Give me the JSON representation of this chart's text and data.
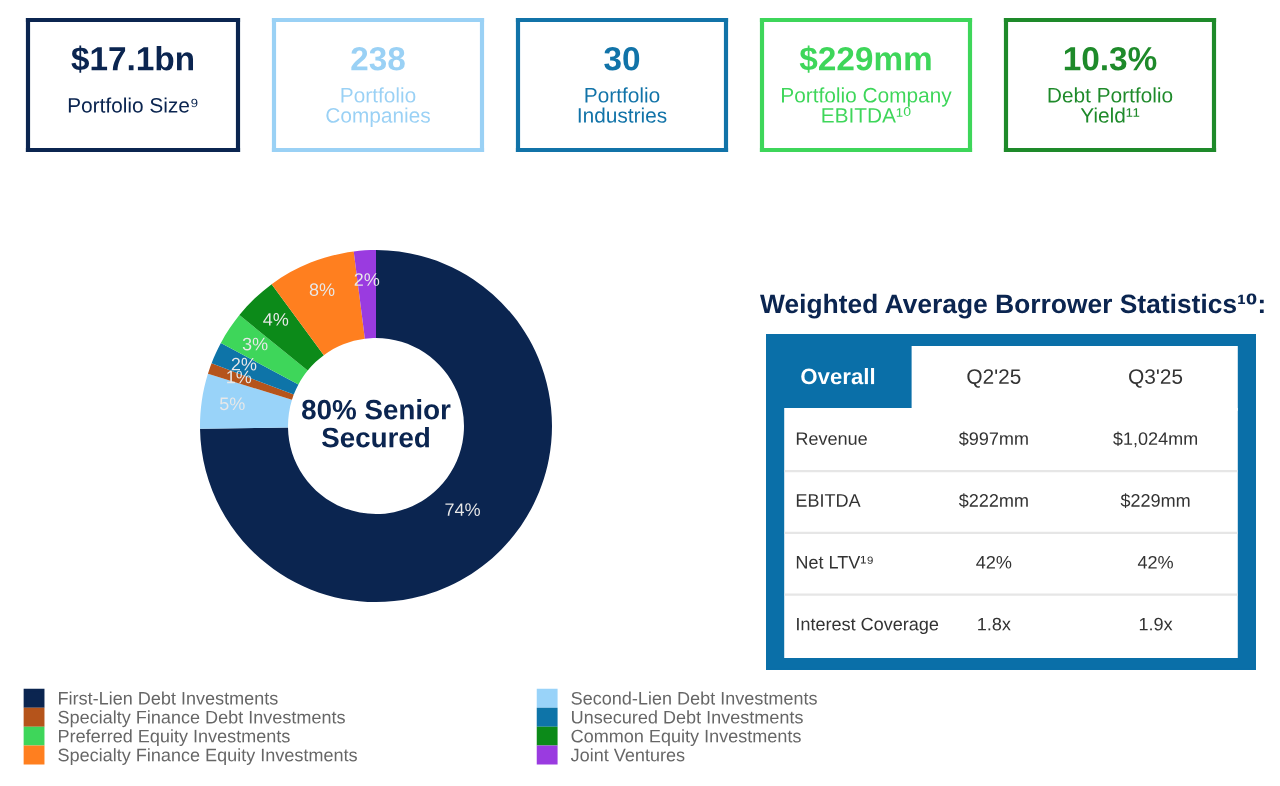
{
  "chart_data": [
    {
      "type": "other",
      "title": "$17.1bn",
      "subtitle": "Portfolio Size⁹",
      "color": "#0b2550"
    },
    {
      "type": "other",
      "title": "238",
      "subtitle": "Portfolio\nCompanies",
      "color": "#9ad1f5"
    },
    {
      "type": "other",
      "title": "30",
      "subtitle": "Portfolio\nIndustries",
      "color": "#1173a8"
    },
    {
      "type": "other",
      "title": "$229mm",
      "subtitle": "Portfolio Company\nEBITDA¹⁰",
      "color": "#3ed65a"
    },
    {
      "type": "other",
      "title": "10.3%",
      "subtitle": "Debt Portfolio\nYield¹¹",
      "color": "#1e8a2a"
    },
    {
      "type": "donut",
      "title": "80% Senior\nSecured",
      "categories": [
        "First-Lien Debt Investments",
        "Second-Lien Debt Investments",
        "Specialty Finance Debt Investments",
        "Unsecured Debt Investments",
        "Preferred Equity Investments",
        "Common Equity Investments",
        "Specialty Finance Equity Investments",
        "Joint Ventures"
      ],
      "values": [
        74,
        5,
        1,
        2,
        3,
        4,
        8,
        2
      ],
      "colors": [
        "#0b2550",
        "#99d3f9",
        "#b5541b",
        "#0e74a8",
        "#3ed65a",
        "#0c8a19",
        "#ff7f1f",
        "#9a3be0"
      ],
      "value_labels": [
        "74%",
        "5%",
        "1%",
        "2%",
        "3%",
        "4%",
        "8%",
        "2%"
      ],
      "legend": "bottom"
    },
    {
      "type": "other",
      "title": "Weighted Average Borrower Statistics¹⁰:",
      "annotations": [
        "Overall",
        "Q2'25",
        "Q3'25",
        "Revenue",
        "$997mm",
        "$1,024mm",
        "EBITDA",
        "$222mm",
        "$229mm",
        "Net LTV¹⁹",
        "42%",
        "42%",
        "Interest Coverage",
        "1.8x",
        "1.9x"
      ]
    }
  ]
}
